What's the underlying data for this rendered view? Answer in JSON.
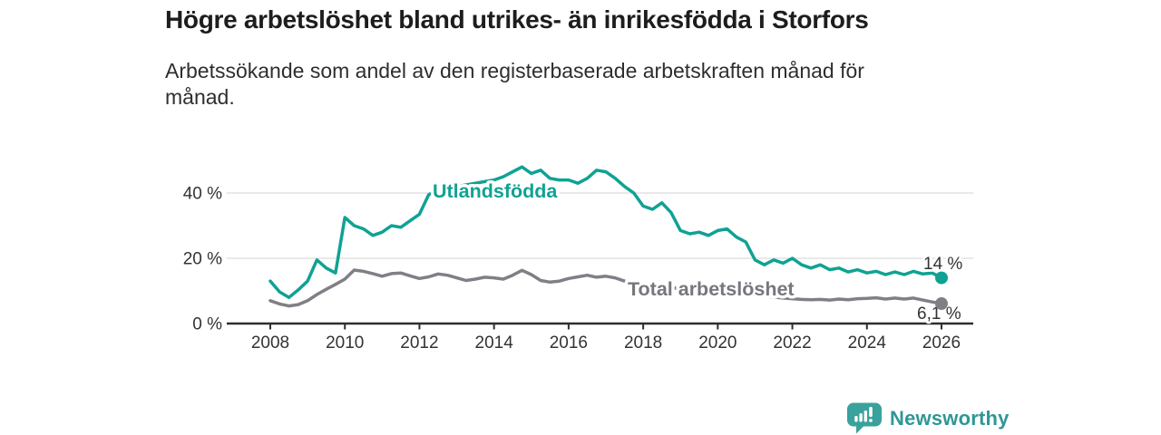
{
  "header": {
    "title": "Högre arbetslöshet bland utrikes- än inrikesfödda i Storfors",
    "subtitle": "Arbetssökande som andel av den registerbaserade arbetskraften månad för månad."
  },
  "footer": {
    "brand": "Newsworthy"
  },
  "colors": {
    "teal": "#0fa294",
    "gray": "#807f86",
    "gray_label": "#77767d",
    "axis": "#2e2e2e",
    "tick_text": "#333333",
    "value_text": "#333333",
    "grid": "#e2e2e2",
    "logo_teal": "#3aa19c",
    "background": "#ffffff"
  },
  "chart_data": {
    "type": "line",
    "title": "Högre arbetslöshet bland utrikes- än inrikesfödda i Storfors",
    "subtitle": "Arbetssökande som andel av den registerbaserade arbetskraften månad för månad.",
    "x_start": 2008,
    "x_step": 0.25,
    "xlim": [
      2006.8,
      2026.9
    ],
    "ylim": [
      0,
      52
    ],
    "grid": "horizontal-only",
    "legend_position": "inline-labels",
    "x_ticks": [
      2008,
      2010,
      2012,
      2014,
      2016,
      2018,
      2020,
      2022,
      2024,
      2026
    ],
    "y_ticks": [
      {
        "v": 0,
        "label": "0 %"
      },
      {
        "v": 20,
        "label": "20 %"
      },
      {
        "v": 40,
        "label": "40 %"
      }
    ],
    "series": [
      {
        "name": "Utlandsfödda",
        "color": "#0fa294",
        "end_label": "14 %",
        "end_value": 14,
        "values": [
          13,
          9.7,
          8,
          10.3,
          13,
          19.5,
          17,
          15.5,
          32.5,
          30,
          29,
          27,
          28,
          30,
          29.5,
          31.5,
          33.5,
          39.5,
          41,
          41.5,
          42,
          42.5,
          43,
          43.5,
          44,
          45,
          46.5,
          48,
          46,
          47,
          44.5,
          44,
          44,
          43,
          44.5,
          47,
          46.5,
          44.5,
          42,
          40,
          36,
          35,
          37,
          34,
          28.5,
          27.5,
          28,
          27,
          28.5,
          29,
          26.5,
          25,
          19.5,
          18,
          19.5,
          18.5,
          20,
          18,
          17,
          18,
          16.5,
          17,
          15.8,
          16.5,
          15.5,
          16,
          15,
          15.8,
          15,
          16,
          15.2,
          15.5,
          14
        ]
      },
      {
        "name": "Total arbetslöshet",
        "color": "#807f86",
        "end_label": "6,1 %",
        "end_value": 6.1,
        "values": [
          7,
          6,
          5.4,
          5.8,
          7,
          8.9,
          10.5,
          12,
          13.6,
          16.4,
          16,
          15.3,
          14.5,
          15.3,
          15.5,
          14.6,
          13.8,
          14.3,
          15.2,
          14.8,
          14,
          13.2,
          13.6,
          14.2,
          14,
          13.6,
          14.8,
          16.3,
          15,
          13.2,
          12.7,
          13,
          13.8,
          14.3,
          14.8,
          14.2,
          14.5,
          14,
          13,
          12.5,
          12,
          11.6,
          11.3,
          11,
          10.7,
          10.4,
          10.2,
          10,
          9.8,
          9.6,
          9.3,
          9,
          8.7,
          8.4,
          8.1,
          7.8,
          7.6,
          7.4,
          7.3,
          7.4,
          7.2,
          7.5,
          7.3,
          7.6,
          7.7,
          7.9,
          7.5,
          7.8,
          7.5,
          7.8,
          7.2,
          6.6,
          6.1
        ]
      }
    ]
  }
}
